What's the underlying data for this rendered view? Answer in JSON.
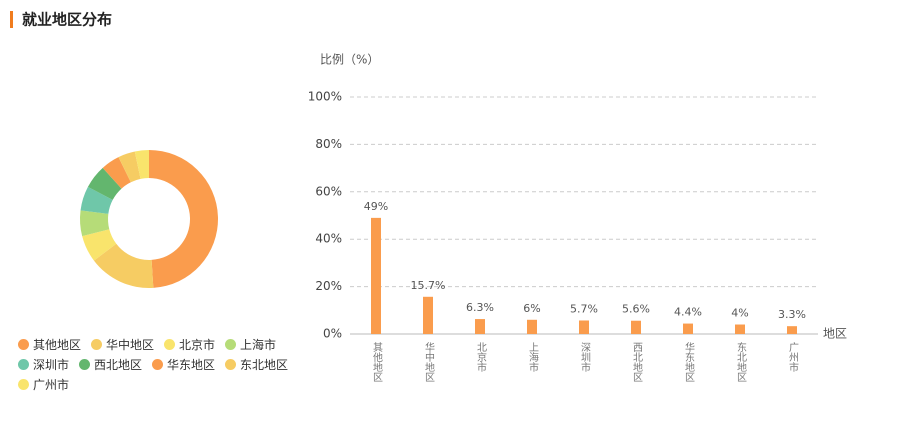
{
  "title": "就业地区分布",
  "chart_data": [
    {
      "type": "pie",
      "categories": [
        "其他地区",
        "华中地区",
        "北京市",
        "上海市",
        "深圳市",
        "西北地区",
        "华东地区",
        "东北地区",
        "广州市"
      ],
      "values": [
        49,
        15.7,
        6.3,
        6,
        5.7,
        5.6,
        4.4,
        4,
        3.3
      ],
      "colors": [
        "#fa9c4d",
        "#f6cc63",
        "#f9e46c",
        "#b6dc78",
        "#6fc7a9",
        "#63b66e",
        "#fa9c4d",
        "#f6cc63",
        "#f9e46c"
      ]
    },
    {
      "type": "bar",
      "ylabel": "比例（%）",
      "xlabel": "地区",
      "categories": [
        "其他地区",
        "华中地区",
        "北京市",
        "上海市",
        "深圳市",
        "西北地区",
        "华东地区",
        "东北地区",
        "广州市"
      ],
      "values": [
        49,
        15.7,
        6.3,
        6,
        5.7,
        5.6,
        4.4,
        4,
        3.3
      ],
      "value_labels": [
        "49%",
        "15.7%",
        "6.3%",
        "6%",
        "5.7%",
        "5.6%",
        "4.4%",
        "4%",
        "3.3%"
      ],
      "color": "#fa9c4d",
      "ylim": [
        0,
        100
      ],
      "yticks": [
        {
          "value": 0,
          "label": "0%"
        },
        {
          "value": 20,
          "label": "20%"
        },
        {
          "value": 40,
          "label": "40%"
        },
        {
          "value": 60,
          "label": "60%"
        },
        {
          "value": 80,
          "label": "80%"
        },
        {
          "value": 100,
          "label": "100%"
        }
      ],
      "grid": true
    }
  ]
}
